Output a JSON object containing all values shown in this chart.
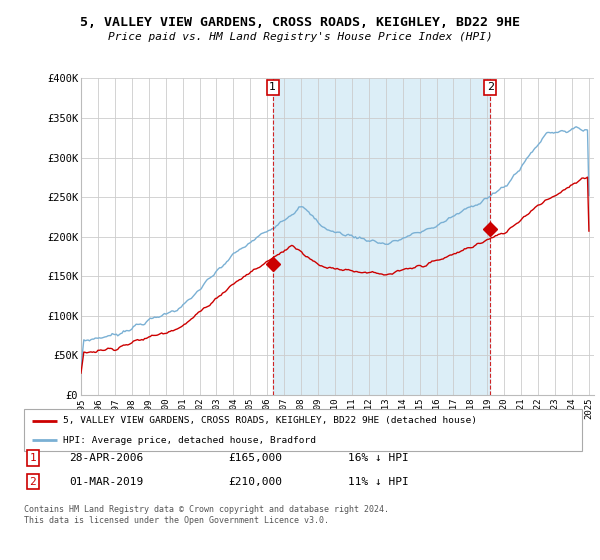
{
  "title": "5, VALLEY VIEW GARDENS, CROSS ROADS, KEIGHLEY, BD22 9HE",
  "subtitle": "Price paid vs. HM Land Registry's House Price Index (HPI)",
  "legend_line1": "5, VALLEY VIEW GARDENS, CROSS ROADS, KEIGHLEY, BD22 9HE (detached house)",
  "legend_line2": "HPI: Average price, detached house, Bradford",
  "transaction1_date": "28-APR-2006",
  "transaction1_price": "£165,000",
  "transaction1_hpi": "16% ↓ HPI",
  "transaction2_date": "01-MAR-2019",
  "transaction2_price": "£210,000",
  "transaction2_hpi": "11% ↓ HPI",
  "footnote": "Contains HM Land Registry data © Crown copyright and database right 2024.\nThis data is licensed under the Open Government Licence v3.0.",
  "red_color": "#cc0000",
  "blue_color": "#7ab0d4",
  "shade_color": "#dceef7",
  "ylim": [
    0,
    400000
  ],
  "yticks": [
    0,
    50000,
    100000,
    150000,
    200000,
    250000,
    300000,
    350000,
    400000
  ],
  "ytick_labels": [
    "£0",
    "£50K",
    "£100K",
    "£150K",
    "£200K",
    "£250K",
    "£300K",
    "£350K",
    "£400K"
  ],
  "transaction1_x": 2006.33,
  "transaction1_y": 165000,
  "transaction2_x": 2019.17,
  "transaction2_y": 210000,
  "vline1_x": 2006.33,
  "vline2_x": 2019.17,
  "xmin": 1995,
  "xmax": 2025.3
}
